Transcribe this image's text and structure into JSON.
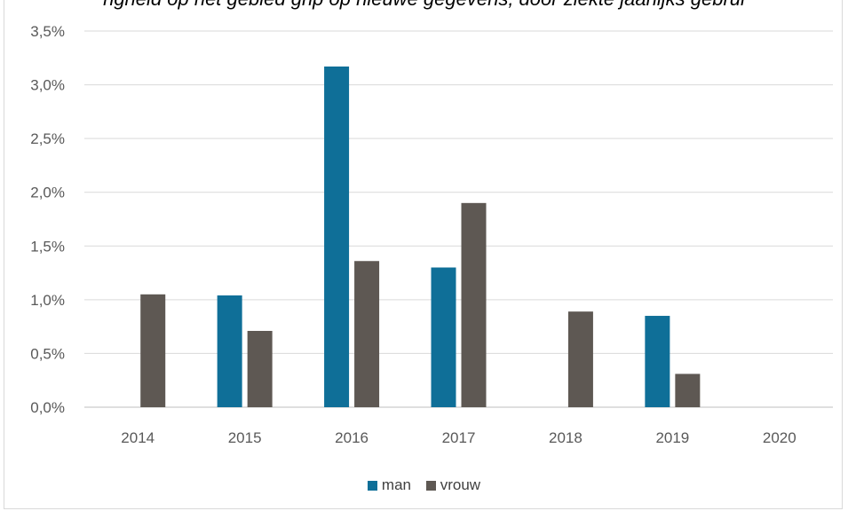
{
  "chart_data": {
    "type": "bar",
    "title": "ngheid op het gebied grip op nieuwe gegevens, door ziekte jaarlijks gebrui",
    "categories": [
      "2014",
      "2015",
      "2016",
      "2017",
      "2018",
      "2019",
      "2020"
    ],
    "series": [
      {
        "name": "man",
        "color": "#0f6f98",
        "values": [
          0,
          1.04,
          3.17,
          1.3,
          0,
          0.85,
          0
        ]
      },
      {
        "name": "vrouw",
        "color": "#5e5853",
        "values": [
          1.05,
          0.71,
          1.36,
          1.9,
          0.89,
          0.31,
          0
        ]
      }
    ],
    "ylim": [
      0,
      3.5
    ],
    "yticks": [
      0,
      0.5,
      1.0,
      1.5,
      2.0,
      2.5,
      3.0,
      3.5
    ],
    "ytick_labels": [
      "0,0%",
      "0,5%",
      "1,0%",
      "1,5%",
      "2,0%",
      "2,5%",
      "3,0%",
      "3,5%"
    ],
    "grid": true,
    "legend_position": "bottom",
    "xlabel": "",
    "ylabel": ""
  }
}
